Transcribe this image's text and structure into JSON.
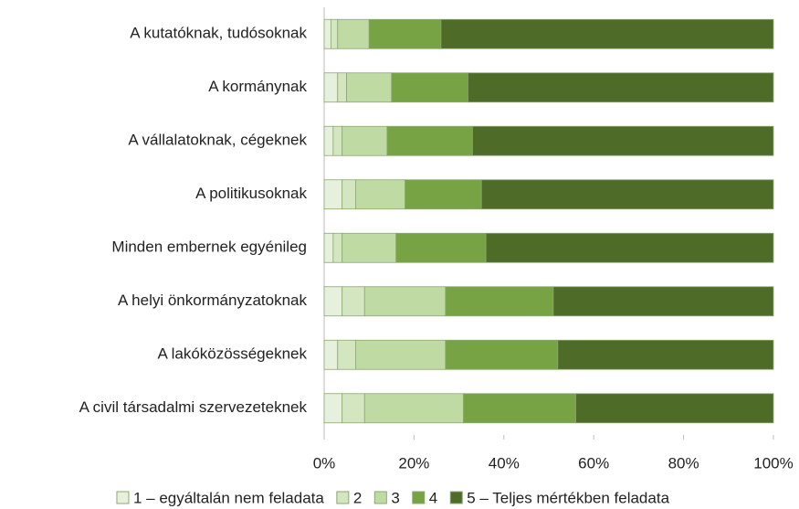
{
  "chart_data": {
    "type": "stacked-bar-horizontal",
    "categories": [
      "A kutatóknak, tudósoknak",
      "A kormánynak",
      "A vállalatoknak, cégeknek",
      "A politikusoknak",
      "Minden embernek egyénileg",
      "A helyi önkormányzatoknak",
      "A lakóközösségeknek",
      "A civil társadalmi szervezeteknek"
    ],
    "series": [
      {
        "name": "1 – egyáltalán nem feladata",
        "color": "#e6f0dc",
        "values": [
          1.5,
          3,
          2,
          4,
          2,
          4,
          3,
          4
        ]
      },
      {
        "name": "2",
        "color": "#d3e6c0",
        "values": [
          1.5,
          2,
          2,
          3,
          2,
          5,
          4,
          5
        ]
      },
      {
        "name": "3",
        "color": "#bfdba3",
        "values": [
          7,
          10,
          10,
          11,
          12,
          18,
          20,
          22
        ]
      },
      {
        "name": "4",
        "color": "#77a344",
        "values": [
          16,
          17,
          19,
          17,
          20,
          24,
          25,
          25
        ]
      },
      {
        "name": "5 – Teljes mértékben feladata",
        "color": "#4f6b28",
        "values": [
          74,
          68,
          67,
          65,
          64,
          49,
          48,
          44
        ]
      }
    ],
    "xlim": [
      0,
      100
    ],
    "xticks": [
      {
        "value": 0,
        "label": "0%"
      },
      {
        "value": 20,
        "label": "20%"
      },
      {
        "value": 40,
        "label": "40%"
      },
      {
        "value": 60,
        "label": "60%"
      },
      {
        "value": 80,
        "label": "80%"
      },
      {
        "value": 100,
        "label": "100%"
      }
    ]
  }
}
